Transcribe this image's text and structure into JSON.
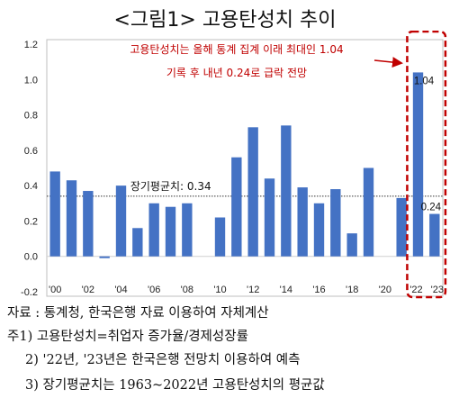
{
  "title": "<그림1> 고용탄성치 추이",
  "chart_data": {
    "type": "bar",
    "title": "<그림1> 고용탄성치 추이",
    "x": [
      2000,
      2001,
      2002,
      2003,
      2004,
      2005,
      2006,
      2007,
      2008,
      2009,
      2010,
      2011,
      2012,
      2013,
      2014,
      2015,
      2016,
      2017,
      2018,
      2019,
      2020,
      2021,
      2022,
      2023
    ],
    "values": [
      0.48,
      0.43,
      0.37,
      -0.01,
      0.4,
      0.16,
      0.3,
      0.28,
      0.3,
      null,
      0.22,
      0.56,
      0.73,
      0.44,
      0.74,
      0.39,
      0.3,
      0.38,
      0.13,
      0.5,
      null,
      0.33,
      1.04,
      0.24
    ],
    "xtick_labels": [
      "'00",
      "'02",
      "'04",
      "'06",
      "'08",
      "'10",
      "'12",
      "'14",
      "'16",
      "'18",
      "'20",
      "'22",
      "'23"
    ],
    "xtick_years": [
      2000,
      2002,
      2004,
      2006,
      2008,
      2010,
      2012,
      2014,
      2016,
      2018,
      2020,
      2022,
      2023
    ],
    "ylim": [
      -0.2,
      1.2
    ],
    "yticks": [
      "1.2",
      "1.0",
      "0.8",
      "0.6",
      "0.4",
      "0.2",
      "0.0",
      "-0.2"
    ],
    "ytick_values": [
      1.2,
      1.0,
      0.8,
      0.6,
      0.4,
      0.2,
      0.0,
      -0.2
    ],
    "average_line": {
      "value": 0.34,
      "label": "장기평균치: 0.34"
    },
    "data_labels": [
      {
        "year": 2022,
        "text": "1.04"
      },
      {
        "year": 2023,
        "text": "0.24"
      }
    ],
    "annotation_lines": [
      "고용탄성치는 올해 통계 집계 이래 최대인 1.04",
      "기록 후 내년 0.24로 급락 전망"
    ],
    "highlight_years": [
      2022,
      2023
    ],
    "grid": false,
    "colors": {
      "bar": "#4472C4",
      "annotation": "#C00000",
      "highlight_box": "#C00000"
    }
  },
  "notes": [
    "자료 : 통계청, 한국은행 자료 이용하여 자체계산",
    "주1) 고용탄성치=취업자 증가율/경제성장률",
    "2) '22년, '23년은 한국은행 전망치 이용하여 예측",
    "3) 장기평균치는 1963~2022년 고용탄성치의 평균값"
  ]
}
